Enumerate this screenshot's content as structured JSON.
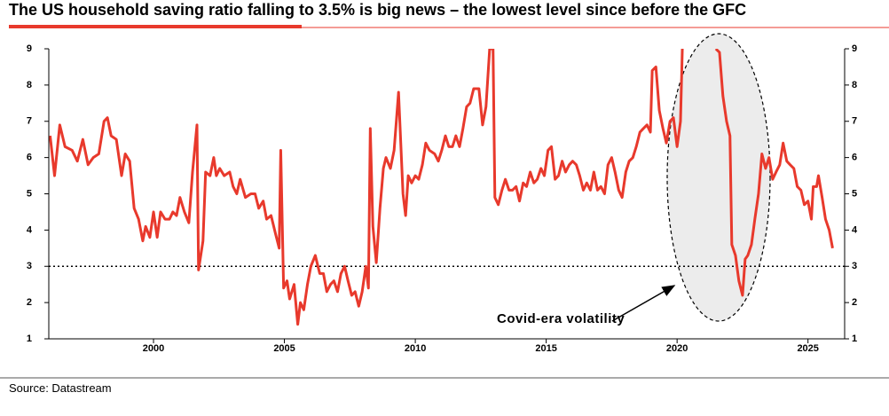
{
  "chart_data": {
    "type": "line",
    "title": "The US household saving ratio falling to 3.5% is big news – the lowest level since before the GFC",
    "source": "Source: Datastream",
    "annotation": "Covid-era volatility",
    "reference_line": 3,
    "xlim": [
      1996,
      2026.4
    ],
    "xticks": [
      2000,
      2005,
      2010,
      2015,
      2020,
      2025
    ],
    "ylim": [
      1,
      9
    ],
    "yticks": [
      1,
      2,
      3,
      4,
      5,
      6,
      7,
      8,
      9
    ],
    "y2lim": [
      1,
      9
    ],
    "y2ticks": [
      1,
      2,
      3,
      4,
      5,
      6,
      7,
      8,
      9
    ],
    "x": [
      1996.05,
      1996.22,
      1996.42,
      1996.62,
      1996.89,
      1997.09,
      1997.3,
      1997.5,
      1997.7,
      1997.91,
      1998.11,
      1998.24,
      1998.38,
      1998.58,
      1998.78,
      1998.92,
      1999.09,
      1999.26,
      1999.43,
      1999.59,
      1999.7,
      1999.86,
      2000.0,
      2000.14,
      2000.27,
      2000.44,
      2000.61,
      2000.74,
      2000.88,
      2001.01,
      2001.18,
      2001.35,
      2001.49,
      2001.66,
      2001.72,
      2001.89,
      2001.99,
      2002.16,
      2002.3,
      2002.4,
      2002.53,
      2002.7,
      2002.91,
      2003.04,
      2003.18,
      2003.31,
      2003.51,
      2003.72,
      2003.88,
      2004.02,
      2004.19,
      2004.32,
      2004.49,
      2004.66,
      2004.8,
      2004.86,
      2004.97,
      2005.1,
      2005.2,
      2005.37,
      2005.51,
      2005.61,
      2005.74,
      2005.88,
      2006.01,
      2006.18,
      2006.35,
      2006.49,
      2006.62,
      2006.76,
      2006.89,
      2007.03,
      2007.16,
      2007.3,
      2007.43,
      2007.57,
      2007.7,
      2007.84,
      2007.97,
      2008.11,
      2008.21,
      2008.28,
      2008.38,
      2008.51,
      2008.65,
      2008.78,
      2008.88,
      2009.05,
      2009.19,
      2009.36,
      2009.53,
      2009.63,
      2009.73,
      2009.86,
      2010.0,
      2010.13,
      2010.27,
      2010.4,
      2010.54,
      2010.74,
      2010.88,
      2011.01,
      2011.15,
      2011.28,
      2011.42,
      2011.55,
      2011.69,
      2011.82,
      2011.96,
      2012.09,
      2012.23,
      2012.43,
      2012.57,
      2012.7,
      2012.84,
      2012.97,
      2013.04,
      2013.17,
      2013.31,
      2013.44,
      2013.58,
      2013.71,
      2013.85,
      2013.98,
      2014.12,
      2014.25,
      2014.39,
      2014.53,
      2014.66,
      2014.8,
      2014.93,
      2015.07,
      2015.2,
      2015.34,
      2015.47,
      2015.61,
      2015.74,
      2015.88,
      2016.01,
      2016.15,
      2016.28,
      2016.42,
      2016.55,
      2016.69,
      2016.82,
      2016.96,
      2017.09,
      2017.23,
      2017.36,
      2017.5,
      2017.63,
      2017.77,
      2017.9,
      2018.04,
      2018.17,
      2018.31,
      2018.44,
      2018.58,
      2018.71,
      2018.85,
      2018.98,
      2019.05,
      2019.19,
      2019.32,
      2019.46,
      2019.59,
      2019.73,
      2019.86,
      2020.0,
      2020.13,
      2020.2,
      2020.9,
      2021.48,
      2021.62,
      2021.75,
      2021.89,
      2022.02,
      2022.09,
      2022.23,
      2022.36,
      2022.5,
      2022.6,
      2022.7,
      2022.84,
      2022.97,
      2023.11,
      2023.24,
      2023.38,
      2023.51,
      2023.65,
      2023.78,
      2023.92,
      2024.05,
      2024.19,
      2024.32,
      2024.46,
      2024.59,
      2024.73,
      2024.86,
      2025.0,
      2025.13,
      2025.2,
      2025.33,
      2025.4,
      2025.54,
      2025.67,
      2025.81,
      2025.94
    ],
    "series": [
      {
        "name": "US household saving ratio",
        "color": "#e8392c",
        "values": [
          6.6,
          5.5,
          6.9,
          6.3,
          6.2,
          5.9,
          6.5,
          5.8,
          6.0,
          6.1,
          7.0,
          7.1,
          6.6,
          6.5,
          5.5,
          6.1,
          5.9,
          4.6,
          4.3,
          3.7,
          4.1,
          3.8,
          4.5,
          3.8,
          4.5,
          4.3,
          4.3,
          4.5,
          4.4,
          4.9,
          4.5,
          4.2,
          5.6,
          6.9,
          2.9,
          3.7,
          5.6,
          5.5,
          6.0,
          5.5,
          5.7,
          5.5,
          5.6,
          5.2,
          5.0,
          5.4,
          4.9,
          5.0,
          5.0,
          4.6,
          4.8,
          4.3,
          4.4,
          3.9,
          3.5,
          6.2,
          2.4,
          2.6,
          2.1,
          2.5,
          1.4,
          2.0,
          1.8,
          2.5,
          3.0,
          3.3,
          2.8,
          2.8,
          2.3,
          2.5,
          2.6,
          2.3,
          2.8,
          3.0,
          2.6,
          2.2,
          2.3,
          1.9,
          2.3,
          3.0,
          2.4,
          6.8,
          4.1,
          3.1,
          4.6,
          5.7,
          6.0,
          5.7,
          6.2,
          7.8,
          5.0,
          4.4,
          5.5,
          5.3,
          5.5,
          5.4,
          5.8,
          6.4,
          6.2,
          6.1,
          5.9,
          6.2,
          6.6,
          6.3,
          6.3,
          6.6,
          6.3,
          6.8,
          7.4,
          7.5,
          7.9,
          7.9,
          6.9,
          7.4,
          9.0,
          9.0,
          4.9,
          4.7,
          5.1,
          5.4,
          5.1,
          5.1,
          5.2,
          4.8,
          5.3,
          5.2,
          5.6,
          5.3,
          5.4,
          5.7,
          5.5,
          6.2,
          6.3,
          5.4,
          5.5,
          5.9,
          5.6,
          5.8,
          5.9,
          5.8,
          5.5,
          5.1,
          5.3,
          5.1,
          5.6,
          5.1,
          5.2,
          5.0,
          5.8,
          6.0,
          5.6,
          5.1,
          4.9,
          5.6,
          5.9,
          6.0,
          6.3,
          6.7,
          6.8,
          6.9,
          6.7,
          8.4,
          8.5,
          7.3,
          6.8,
          6.4,
          7.0,
          7.1,
          6.3,
          7.0,
          9.0,
          null,
          9.0,
          8.9,
          7.7,
          7.0,
          6.6,
          3.6,
          3.3,
          2.6,
          2.2,
          3.2,
          3.3,
          3.6,
          4.3,
          5.0,
          6.1,
          5.7,
          6.0,
          5.4,
          5.6,
          5.8,
          6.4,
          5.9,
          5.8,
          5.7,
          5.2,
          5.1,
          4.7,
          4.8,
          4.3,
          5.2,
          5.2,
          5.5,
          4.9,
          4.3,
          4.0,
          3.5
        ]
      }
    ]
  }
}
